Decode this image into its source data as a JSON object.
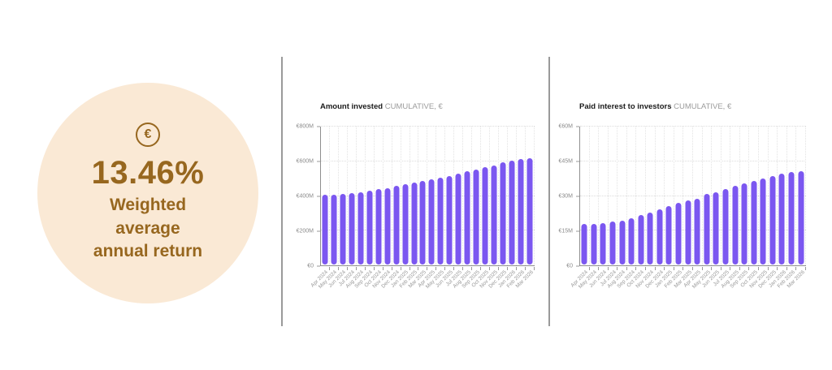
{
  "badge": {
    "icon": "euro-circle-icon",
    "euro_symbol": "€",
    "value": "13.46%",
    "label": "Weighted\naverage\nannual return",
    "bg_color": "#FAE9D5",
    "text_color": "#97671F"
  },
  "chart_data": [
    {
      "type": "bar",
      "title_bold": "Amount invested",
      "title_light": "CUMULATIVE, €",
      "legend": [],
      "grid": true,
      "bar_color": "#7B57F0",
      "y_ticks": [
        "€0",
        "€200M",
        "€400M",
        "€600M",
        "€800M"
      ],
      "y_max": 800,
      "ylim": [
        0,
        800
      ],
      "categories": [
        "Apr 2024",
        "May 2024",
        "Jun 2024",
        "Jul 2024",
        "Aug 2024",
        "Sep 2024",
        "Oct 2024",
        "Nov 2024",
        "Dec 2024",
        "Jan 2025",
        "Feb 2025",
        "Mar 2025",
        "Apr 2025",
        "May 2025",
        "Jun 2025",
        "Jul 2025",
        "Aug 2025",
        "Sep 2025",
        "Oct 2025",
        "Nov 2025",
        "Dec 2025",
        "Jan 2026",
        "Feb 2026",
        "Mar 2026"
      ],
      "values": [
        402,
        402,
        405,
        412,
        415,
        424,
        433,
        442,
        452,
        462,
        472,
        481,
        491,
        502,
        512,
        523,
        536,
        548,
        560,
        573,
        589,
        600,
        609,
        612
      ]
    },
    {
      "type": "bar",
      "title_bold": "Paid interest to investors",
      "title_light": "CUMULATIVE, €",
      "legend": [],
      "grid": true,
      "bar_color": "#7B57F0",
      "y_ticks": [
        "€0",
        "€15M",
        "€30M",
        "€45M",
        "€60M"
      ],
      "y_max": 60,
      "ylim": [
        0,
        60
      ],
      "categories": [
        "Apr 2024",
        "May 2024",
        "Jun 2024",
        "Jul 2024",
        "Aug 2024",
        "Sep 2024",
        "Oct 2024",
        "Nov 2024",
        "Dec 2024",
        "Jan 2025",
        "Feb 2025",
        "Mar 2025",
        "Apr 2025",
        "May 2025",
        "Jun 2025",
        "Jul 2025",
        "Aug 2025",
        "Sep 2025",
        "Oct 2025",
        "Nov 2025",
        "Dec 2025",
        "Jan 2026",
        "Feb 2026",
        "Mar 2026"
      ],
      "values": [
        17.5,
        17.4,
        17.8,
        18.5,
        18.9,
        20.0,
        21.4,
        22.6,
        24.0,
        25.2,
        26.7,
        27.7,
        28.5,
        30.4,
        31.4,
        32.6,
        34.1,
        35.2,
        36.3,
        37.3,
        38.2,
        39.2,
        40.0,
        40.4
      ]
    }
  ]
}
